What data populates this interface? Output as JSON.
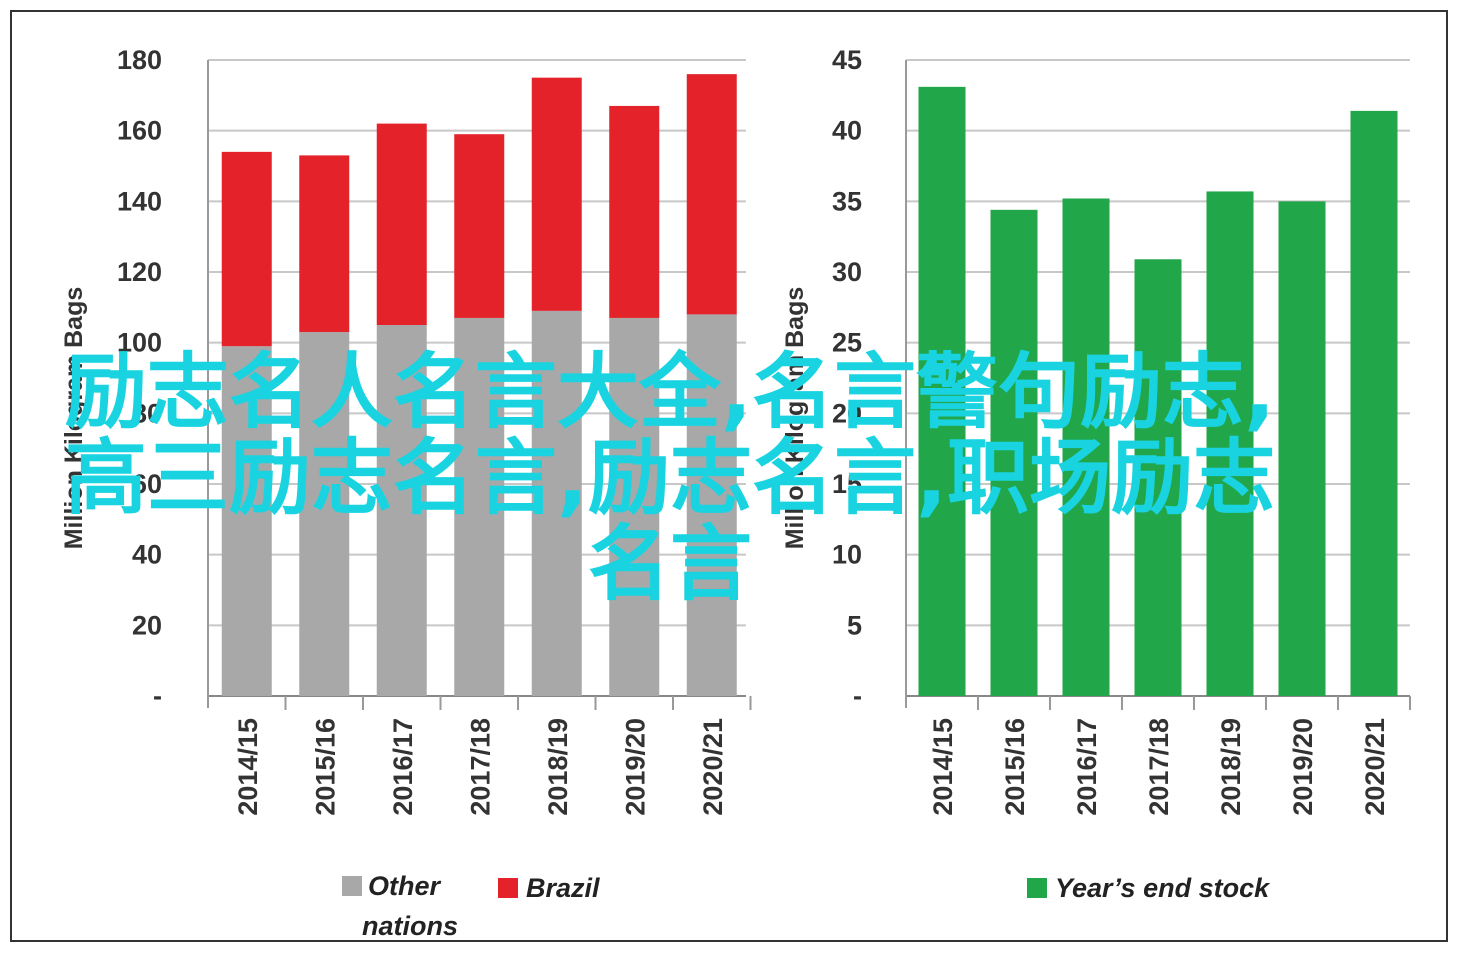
{
  "chart_data": [
    {
      "type": "bar",
      "stacked": true,
      "categories": [
        "2014/15",
        "2015/16",
        "2016/17",
        "2017/18",
        "2018/19",
        "2019/20",
        "2020/21"
      ],
      "series": [
        {
          "name": "Other nations",
          "color": "#a8a8a8",
          "values": [
            99,
            103,
            105,
            107,
            109,
            107,
            108
          ]
        },
        {
          "name": "Brazil",
          "color": "#e32229",
          "values": [
            55,
            50,
            57,
            52,
            66,
            60,
            68
          ]
        }
      ],
      "ylabel": "Million Kilogram Bags",
      "ylim": [
        0,
        180
      ],
      "yticks": [
        0,
        20,
        40,
        60,
        80,
        100,
        120,
        140,
        160,
        180
      ],
      "ytick_labels": [
        "-",
        "20",
        "40",
        "60",
        "80",
        "100",
        "120",
        "140",
        "160",
        "180"
      ],
      "legend_labels": [
        "Other",
        "nations",
        "Brazil"
      ],
      "grid": true,
      "legend_position": "bottom"
    },
    {
      "type": "bar",
      "categories": [
        "2014/15",
        "2015/16",
        "2016/17",
        "2017/18",
        "2018/19",
        "2019/20",
        "2020/21"
      ],
      "series": [
        {
          "name": "Year’s end stock",
          "color": "#22a64a",
          "values": [
            43.1,
            34.4,
            35.2,
            30.9,
            35.7,
            35.0,
            41.4
          ]
        }
      ],
      "ylabel": "Million Kilogram Bags",
      "ylim": [
        0,
        45
      ],
      "yticks": [
        0,
        5,
        10,
        15,
        20,
        25,
        30,
        35,
        40,
        45
      ],
      "ytick_labels": [
        "-",
        "5",
        "10",
        "15",
        "20",
        "25",
        "30",
        "35",
        "40",
        "45"
      ],
      "legend_labels": [
        "Year’s end stock"
      ],
      "grid": true,
      "legend_position": "bottom"
    }
  ],
  "overlay": {
    "lines": [
      "励志名人名言大全,名言警句励志,",
      "高三励志名言,励志名言,职场励志",
      "名言"
    ]
  }
}
